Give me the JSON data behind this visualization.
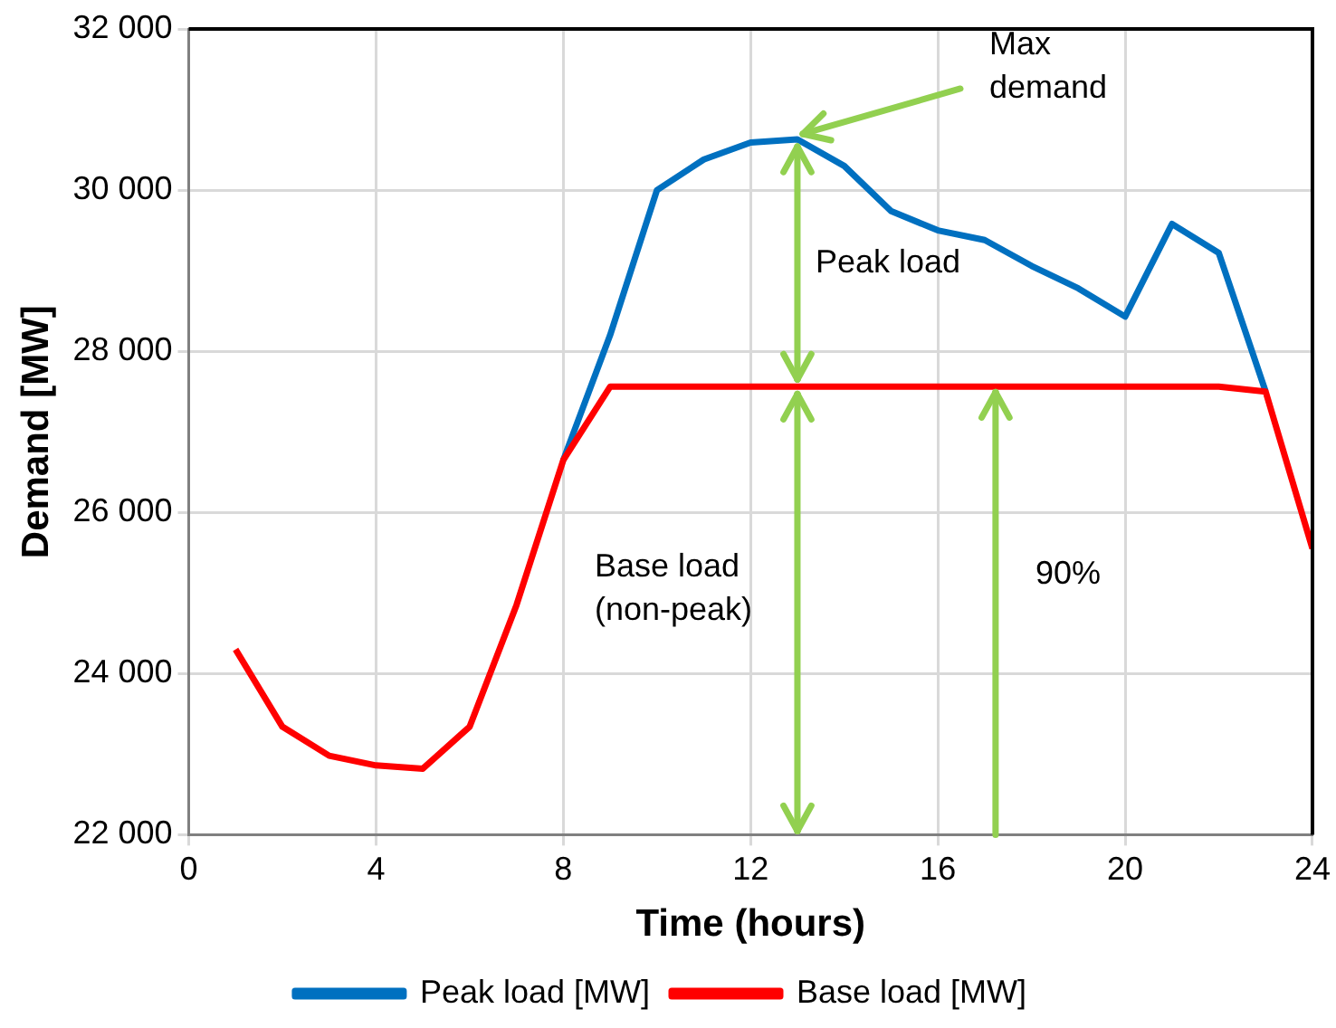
{
  "chart_data": {
    "type": "line",
    "xlabel": "Time (hours)",
    "ylabel": "Demand [MW]",
    "x": [
      1,
      2,
      3,
      4,
      5,
      6,
      7,
      8,
      9,
      10,
      11,
      12,
      13,
      14,
      15,
      16,
      17,
      18,
      19,
      20,
      21,
      22,
      23,
      24
    ],
    "series": [
      {
        "name": "Peak load [MW]",
        "color": "#0070c0",
        "values": [
          null,
          null,
          null,
          null,
          null,
          null,
          null,
          26650,
          28200,
          30000,
          30380,
          30590,
          30630,
          30300,
          29740,
          29500,
          29380,
          29060,
          28780,
          28430,
          29580,
          29220,
          27500,
          null
        ]
      },
      {
        "name": "Base load [MW]",
        "color": "#ff0000",
        "values": [
          24300,
          23340,
          22980,
          22860,
          22820,
          23340,
          24850,
          26650,
          27560,
          27560,
          27560,
          27560,
          27560,
          27560,
          27560,
          27560,
          27560,
          27560,
          27560,
          27560,
          27560,
          27560,
          27500,
          25550
        ]
      }
    ],
    "xlim": [
      0,
      24
    ],
    "xticks": [
      0,
      4,
      8,
      12,
      16,
      20,
      24
    ],
    "ylim": [
      22000,
      32000
    ],
    "yticks": [
      {
        "value": 22000,
        "label": "22 000"
      },
      {
        "value": 24000,
        "label": "24 000"
      },
      {
        "value": 26000,
        "label": "26 000"
      },
      {
        "value": 28000,
        "label": "28 000"
      },
      {
        "value": 30000,
        "label": "30 000"
      },
      {
        "value": 32000,
        "label": "32 000"
      }
    ],
    "grid": true,
    "legend": "bottom",
    "marker": "none",
    "line_style": "solid",
    "annotations": [
      {
        "text": "Max\ndemand",
        "x": 13,
        "y": 30630
      },
      "Peak load",
      "Base load\n(non-peak)",
      "90%"
    ]
  }
}
